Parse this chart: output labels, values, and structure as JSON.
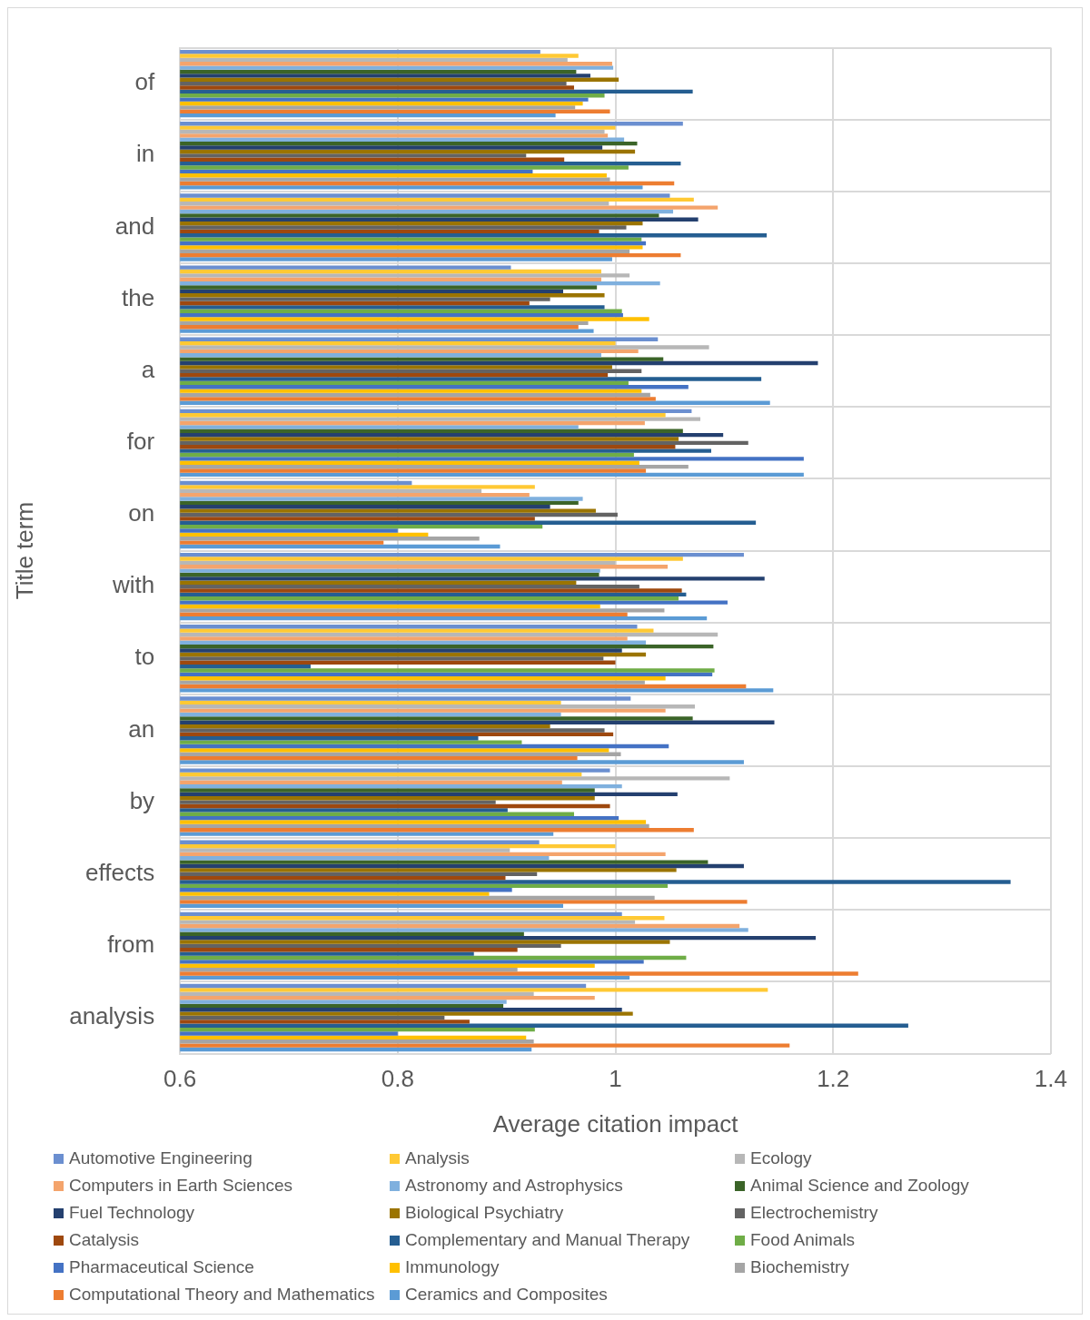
{
  "chart_data": {
    "type": "bar",
    "orientation": "horizontal",
    "xlabel": "Average citation impact",
    "ylabel": "Title term",
    "categories": [
      "of",
      "in",
      "and",
      "the",
      "a",
      "for",
      "on",
      "with",
      "to",
      "an",
      "by",
      "effects",
      "from",
      "analysis"
    ],
    "xlim": [
      0.6,
      1.4
    ],
    "xticks": [
      0.6,
      0.8,
      1,
      1.2,
      1.4
    ],
    "grid": true,
    "legend": "bottom",
    "series": [
      {
        "name": "Automotive Engineering",
        "color": "#6b8fd0",
        "values": [
          0.931,
          1.062,
          1.05,
          0.904,
          1.039,
          1.07,
          0.813,
          1.118,
          1.02,
          1.014,
          0.995,
          0.93,
          1.006,
          0.973
        ]
      },
      {
        "name": "Analysis",
        "color": "#ffc934",
        "values": [
          0.966,
          1.0,
          1.072,
          0.987,
          1.0,
          1.046,
          0.926,
          1.062,
          1.035,
          0.95,
          0.969,
          1.0,
          1.045,
          1.14
        ]
      },
      {
        "name": "Ecology",
        "color": "#b7b7b7",
        "values": [
          0.956,
          0.99,
          0.994,
          1.013,
          1.086,
          1.078,
          0.877,
          1.0,
          1.094,
          1.073,
          1.105,
          0.903,
          1.018,
          0.925
        ]
      },
      {
        "name": "Computers in Earth Sciences",
        "color": "#f4a46c",
        "values": [
          0.997,
          0.993,
          1.094,
          0.987,
          1.021,
          1.027,
          0.921,
          1.048,
          1.011,
          1.046,
          0.951,
          1.046,
          1.114,
          0.981
        ]
      },
      {
        "name": "Astronomy and Astrophysics",
        "color": "#7fb0de",
        "values": [
          0.998,
          1.008,
          1.053,
          1.041,
          0.987,
          0.966,
          0.97,
          0.986,
          1.028,
          0.95,
          1.006,
          0.939,
          1.122,
          0.9
        ]
      },
      {
        "name": "Animal Science and Zoology",
        "color": "#3b6428",
        "values": [
          0.964,
          1.02,
          1.04,
          0.983,
          1.044,
          1.062,
          0.966,
          0.985,
          1.09,
          1.071,
          0.981,
          1.085,
          0.916,
          0.897
        ]
      },
      {
        "name": "Fuel Technology",
        "color": "#24406f",
        "values": [
          0.977,
          0.988,
          1.076,
          0.952,
          1.186,
          1.099,
          0.94,
          1.137,
          1.006,
          1.146,
          1.057,
          1.118,
          1.184,
          1.006
        ]
      },
      {
        "name": "Biological Psychiatry",
        "color": "#9b7400",
        "values": [
          1.003,
          1.018,
          1.025,
          0.99,
          0.997,
          1.058,
          0.982,
          0.964,
          1.028,
          0.94,
          0.981,
          1.056,
          1.05,
          1.016
        ]
      },
      {
        "name": "Electrochemistry",
        "color": "#636363",
        "values": [
          0.955,
          0.918,
          1.01,
          0.94,
          1.024,
          1.122,
          1.002,
          1.022,
          0.989,
          0.99,
          0.89,
          0.928,
          0.95,
          0.843
        ]
      },
      {
        "name": "Catalysis",
        "color": "#9e480e",
        "values": [
          0.962,
          0.953,
          0.985,
          0.921,
          0.993,
          1.055,
          0.926,
          1.061,
          1.0,
          0.998,
          0.995,
          0.899,
          0.91,
          0.866
        ]
      },
      {
        "name": "Complementary and Manual Therapy",
        "color": "#255e91",
        "values": [
          1.071,
          1.06,
          1.139,
          0.99,
          1.134,
          1.088,
          1.129,
          1.065,
          0.72,
          0.874,
          0.901,
          1.363,
          0.87,
          1.269
        ]
      },
      {
        "name": "Food Animals",
        "color": "#6fad47",
        "values": [
          0.99,
          1.012,
          1.024,
          1.006,
          1.012,
          1.017,
          0.933,
          1.058,
          1.091,
          0.914,
          0.962,
          1.048,
          1.065,
          0.926
        ]
      },
      {
        "name": "Pharmaceutical Science",
        "color": "#4472c4",
        "values": [
          0.975,
          0.924,
          1.028,
          1.007,
          1.067,
          1.173,
          0.8,
          1.103,
          1.089,
          1.049,
          1.003,
          0.905,
          1.026,
          0.8
        ]
      },
      {
        "name": "Immunology",
        "color": "#ffc000",
        "values": [
          0.97,
          0.992,
          1.025,
          1.031,
          1.024,
          1.022,
          0.828,
          0.986,
          1.046,
          0.994,
          1.028,
          0.884,
          0.981,
          0.918
        ]
      },
      {
        "name": "Biochemistry",
        "color": "#a5a5a5",
        "values": [
          0.963,
          0.995,
          1.013,
          0.975,
          1.032,
          1.067,
          0.875,
          1.045,
          1.027,
          1.005,
          1.031,
          1.036,
          0.91,
          0.925
        ]
      },
      {
        "name": "Computational Theory and Mathematics",
        "color": "#ed7d31",
        "values": [
          0.995,
          1.054,
          1.06,
          0.966,
          1.037,
          1.028,
          0.787,
          1.011,
          1.12,
          0.965,
          1.072,
          1.121,
          1.223,
          1.16
        ]
      },
      {
        "name": "Ceramics and Composites",
        "color": "#5b9bd5",
        "values": [
          0.945,
          1.025,
          0.997,
          0.98,
          1.142,
          1.173,
          0.894,
          1.084,
          1.145,
          1.118,
          0.943,
          0.952,
          1.013,
          0.923
        ]
      }
    ]
  }
}
